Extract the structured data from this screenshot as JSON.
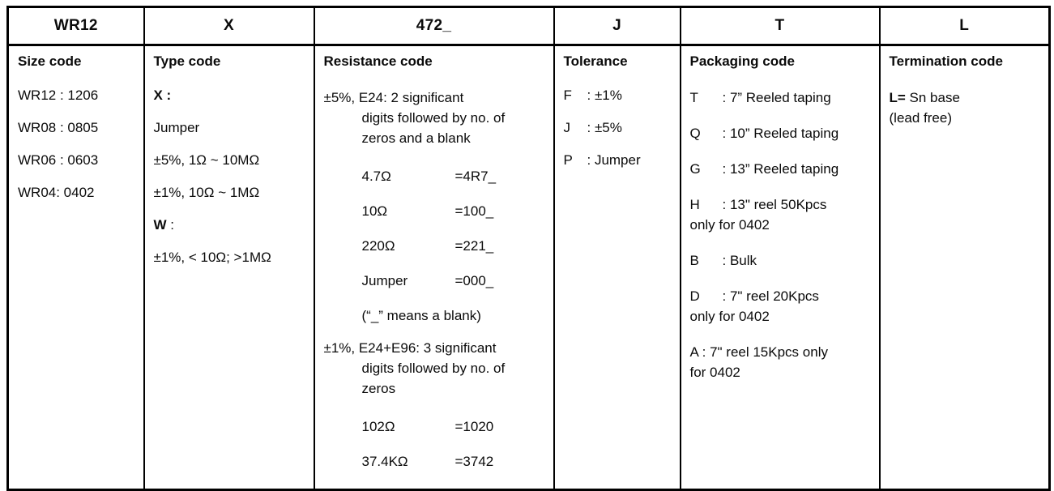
{
  "part": {
    "codes": [
      "WR12",
      "X",
      "472_",
      "J",
      "T",
      "L"
    ]
  },
  "columns": [
    {
      "key": "size",
      "title": "Size code",
      "items": [
        {
          "tx": "WR12 : 1206"
        },
        {
          "tx": "WR08 : 0805"
        },
        {
          "tx": "WR06 : 0603"
        },
        {
          "tx": "WR04: 0402"
        }
      ]
    },
    {
      "key": "type",
      "title": "Type code",
      "items": [
        {
          "b": "X :",
          "tx": ""
        },
        {
          "tx": "Jumper"
        },
        {
          "tx": "±5%, 1Ω ~ 10MΩ"
        },
        {
          "tx": "±1%, 10Ω ~ 1MΩ"
        },
        {
          "b": "W",
          "tx": " :"
        },
        {
          "tx": "±1%, < 10Ω; >1MΩ"
        }
      ]
    },
    {
      "key": "resistance",
      "title": "Resistance code",
      "items": [
        {
          "kind": "para",
          "lines": [
            "±5%, E24: 2 significant",
            "digits followed by no. of",
            "zeros and a blank"
          ]
        },
        {
          "kind": "pair",
          "lab": "4.7Ω",
          "val": "=4R7_"
        },
        {
          "kind": "pair",
          "lab": "10Ω",
          "val": "=100_"
        },
        {
          "kind": "pair",
          "lab": "220Ω",
          "val": "=221_"
        },
        {
          "kind": "pair",
          "lab": "Jumper",
          "val": "=000_"
        },
        {
          "kind": "ind",
          "tx": "(“_” means a blank)"
        },
        {
          "kind": "para",
          "lines": [
            "±1%, E24+E96: 3 significant",
            "digits followed by no. of",
            "zeros"
          ]
        },
        {
          "kind": "pair",
          "lab": "102Ω",
          "val": "=1020"
        },
        {
          "kind": "pair",
          "lab": "37.4KΩ",
          "val": "=3742"
        }
      ]
    },
    {
      "key": "tolerance",
      "title": "Tolerance",
      "items": [
        {
          "lt": "F",
          "tx": ": ±1%"
        },
        {
          "lt": "J",
          "tx": ": ±5%"
        },
        {
          "lt": "P",
          "tx": ": Jumper"
        }
      ]
    },
    {
      "key": "packaging",
      "title": "Packaging code",
      "items": [
        {
          "lines": [
            {
              "lt": "T",
              "tx": ": 7” Reeled taping"
            }
          ]
        },
        {
          "lines": [
            {
              "lt": "Q",
              "tx": ": 10” Reeled taping"
            }
          ]
        },
        {
          "lines": [
            {
              "lt": "G",
              "tx": ": 13” Reeled taping"
            }
          ]
        },
        {
          "lines": [
            {
              "lt": "H",
              "tx": ": 13\" reel 50Kpcs"
            },
            {
              "tx": "only for 0402"
            }
          ]
        },
        {
          "lines": [
            {
              "lt": "B",
              "tx": ": Bulk"
            }
          ]
        },
        {
          "lines": [
            {
              "lt": "D",
              "tx": ": 7\" reel 20Kpcs"
            },
            {
              "tx": "only for 0402"
            }
          ]
        },
        {
          "lines": [
            {
              "tx": "A : 7\" reel 15Kpcs only"
            },
            {
              "tx": "for 0402"
            }
          ]
        }
      ]
    },
    {
      "key": "termination",
      "title": "Termination code",
      "items": [
        {
          "lines": [
            {
              "b": "L=",
              "tx": " Sn base"
            },
            {
              "tx": "(lead free)"
            }
          ]
        }
      ]
    }
  ]
}
